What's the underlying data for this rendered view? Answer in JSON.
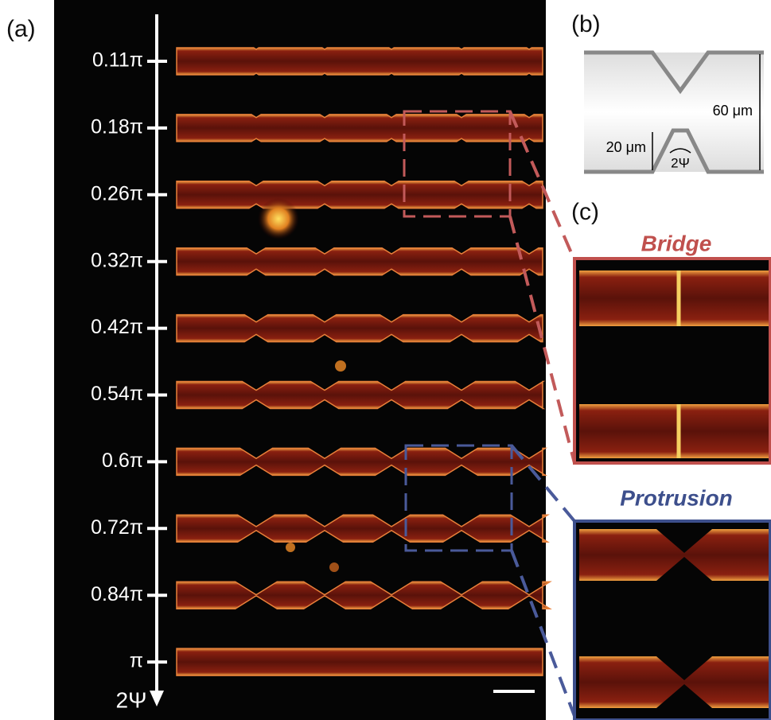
{
  "panels": {
    "a": {
      "label": "(a)",
      "axis_label": "2Ψ",
      "ticks": [
        "0.11π",
        "0.18π",
        "0.26π",
        "0.32π",
        "0.42π",
        "0.54π",
        "0.6π",
        "0.72π",
        "0.84π",
        "π"
      ]
    },
    "b": {
      "label": "(b)",
      "height": "60 μm",
      "gap": "20 μm",
      "angle": "2Ψ"
    },
    "c": {
      "label": "(c)",
      "top_title": "Bridge",
      "bottom_title": "Protrusion"
    }
  }
}
